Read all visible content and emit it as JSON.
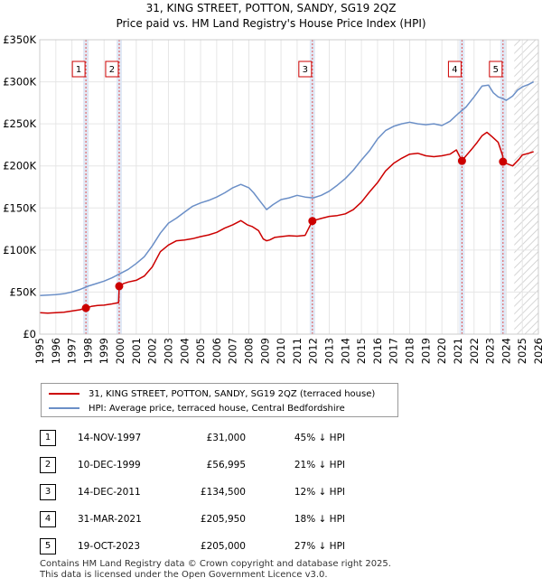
{
  "chart_data": {
    "type": "line",
    "title": "31, KING STREET, POTTON, SANDY, SG19 2QZ",
    "subtitle": "Price paid vs. HM Land Registry's House Price Index (HPI)",
    "xlim": [
      1995,
      2026
    ],
    "ylim": [
      0,
      350000
    ],
    "x_ticks": [
      "1995",
      "1996",
      "1997",
      "1998",
      "1999",
      "2000",
      "2001",
      "2002",
      "2003",
      "2004",
      "2005",
      "2006",
      "2007",
      "2008",
      "2009",
      "2010",
      "2011",
      "2012",
      "2013",
      "2014",
      "2015",
      "2016",
      "2017",
      "2018",
      "2019",
      "2020",
      "2021",
      "2022",
      "2023",
      "2024",
      "2025",
      "2026"
    ],
    "y_ticks": [
      {
        "value": 0,
        "label": "£0"
      },
      {
        "value": 50000,
        "label": "£50K"
      },
      {
        "value": 100000,
        "label": "£100K"
      },
      {
        "value": 150000,
        "label": "£150K"
      },
      {
        "value": 200000,
        "label": "£200K"
      },
      {
        "value": 250000,
        "label": "£250K"
      },
      {
        "value": 300000,
        "label": "£300K"
      },
      {
        "value": 350000,
        "label": "£350K"
      }
    ],
    "forecast_start": 2024.5,
    "series": [
      {
        "name": "31, KING STREET, POTTON, SANDY, SG19 2QZ (terraced house)",
        "color": "#cc0000",
        "x": [
          1995.0,
          1995.5,
          1996.0,
          1996.5,
          1997.0,
          1997.5,
          1997.87,
          1998.2,
          1998.6,
          1999.0,
          1999.5,
          1999.9,
          1999.94,
          2000.2,
          2000.5,
          2001.0,
          2001.5,
          2002.0,
          2002.5,
          2003.0,
          2003.5,
          2004.0,
          2004.5,
          2005.0,
          2005.5,
          2006.0,
          2006.5,
          2007.0,
          2007.5,
          2007.9,
          2008.2,
          2008.6,
          2008.9,
          2009.1,
          2009.3,
          2009.6,
          2010.0,
          2010.5,
          2011.0,
          2011.5,
          2011.95,
          2012.0,
          2012.5,
          2013.0,
          2013.5,
          2014.0,
          2014.5,
          2015.0,
          2015.5,
          2016.0,
          2016.5,
          2017.0,
          2017.5,
          2018.0,
          2018.5,
          2019.0,
          2019.5,
          2020.0,
          2020.5,
          2020.9,
          2021.25,
          2021.5,
          2021.9,
          2022.2,
          2022.5,
          2022.8,
          2023.1,
          2023.5,
          2023.78,
          2023.8,
          2024.0,
          2024.4,
          2024.8,
          2025.0,
          2025.4,
          2025.7
        ],
        "values": [
          25500,
          25000,
          25500,
          26000,
          27500,
          29000,
          31000,
          33000,
          34000,
          34500,
          36000,
          37500,
          56995,
          60000,
          62000,
          64000,
          69000,
          80000,
          98000,
          106000,
          111000,
          112000,
          113500,
          116000,
          118000,
          121000,
          126000,
          130000,
          135000,
          130000,
          128000,
          123000,
          113000,
          111000,
          112000,
          115000,
          116000,
          117000,
          116500,
          117500,
          134500,
          135000,
          137500,
          140000,
          141000,
          143000,
          148000,
          157000,
          169000,
          180000,
          194000,
          203000,
          209000,
          214000,
          215000,
          212000,
          211000,
          212000,
          214000,
          219000,
          205950,
          212000,
          221000,
          228000,
          236000,
          240000,
          235000,
          228000,
          212000,
          205000,
          203000,
          200000,
          208000,
          213000,
          215000,
          217000
        ]
      },
      {
        "name": "HPI: Average price, terraced house, Central Bedfordshire",
        "color": "#6b8fc7",
        "x": [
          1995.0,
          1995.5,
          1996.0,
          1996.5,
          1997.0,
          1997.5,
          1998.0,
          1998.5,
          1999.0,
          1999.5,
          2000.0,
          2000.5,
          2001.0,
          2001.5,
          2002.0,
          2002.5,
          2003.0,
          2003.5,
          2004.0,
          2004.5,
          2005.0,
          2005.5,
          2006.0,
          2006.5,
          2007.0,
          2007.5,
          2008.0,
          2008.3,
          2008.7,
          2009.1,
          2009.5,
          2010.0,
          2010.5,
          2011.0,
          2011.5,
          2012.0,
          2012.5,
          2013.0,
          2013.5,
          2014.0,
          2014.5,
          2015.0,
          2015.5,
          2016.0,
          2016.5,
          2017.0,
          2017.5,
          2018.0,
          2018.5,
          2019.0,
          2019.5,
          2020.0,
          2020.5,
          2021.0,
          2021.5,
          2022.0,
          2022.5,
          2022.9,
          2023.2,
          2023.5,
          2023.8,
          2024.0,
          2024.4,
          2024.7,
          2025.0,
          2025.4,
          2025.7
        ],
        "values": [
          46000,
          46500,
          47000,
          48000,
          50000,
          53000,
          57000,
          60000,
          63000,
          67000,
          72000,
          77000,
          84000,
          92000,
          105000,
          120000,
          132000,
          138000,
          145000,
          152000,
          156000,
          159000,
          163000,
          168000,
          174000,
          178000,
          174000,
          168000,
          158000,
          148000,
          154000,
          160000,
          162000,
          165000,
          163000,
          162000,
          165000,
          170000,
          177000,
          185000,
          195000,
          207000,
          218000,
          232000,
          242000,
          247000,
          250000,
          252000,
          250000,
          249000,
          250000,
          248000,
          253000,
          262000,
          270000,
          282000,
          295000,
          296000,
          287000,
          282000,
          280000,
          278000,
          283000,
          290000,
          294000,
          297000,
          300000
        ]
      }
    ],
    "sales": [
      {
        "index": "1",
        "x": 1997.87,
        "price_value": 31000
      },
      {
        "index": "2",
        "x": 1999.94,
        "price_value": 56995
      },
      {
        "index": "3",
        "x": 2011.95,
        "price_value": 134500
      },
      {
        "index": "4",
        "x": 2021.25,
        "price_value": 205950
      },
      {
        "index": "5",
        "x": 2023.8,
        "price_value": 205000
      }
    ]
  },
  "legend": {
    "property_label": "31, KING STREET, POTTON, SANDY, SG19 2QZ (terraced house)",
    "hpi_label": "HPI: Average price, terraced house, Central Bedfordshire"
  },
  "table": {
    "rows": [
      {
        "index": "1",
        "date": "14-NOV-1997",
        "price": "£31,000",
        "hpi": "45% ↓ HPI"
      },
      {
        "index": "2",
        "date": "10-DEC-1999",
        "price": "£56,995",
        "hpi": "21% ↓ HPI"
      },
      {
        "index": "3",
        "date": "14-DEC-2011",
        "price": "£134,500",
        "hpi": "12% ↓ HPI"
      },
      {
        "index": "4",
        "date": "31-MAR-2021",
        "price": "£205,950",
        "hpi": "18% ↓ HPI"
      },
      {
        "index": "5",
        "date": "19-OCT-2023",
        "price": "£205,000",
        "hpi": "27% ↓ HPI"
      }
    ]
  },
  "footer": {
    "line1": "Contains HM Land Registry data © Crown copyright and database right 2025.",
    "line2": "This data is licensed under the Open Government Licence v3.0."
  },
  "colors": {
    "property": "#cc0000",
    "hpi": "#6b8fc7",
    "sale_band": "#dde6f4",
    "sale_line": "#e05050",
    "forecast_hatch": "#c8c8c8",
    "grid": "#e6e6e6"
  }
}
